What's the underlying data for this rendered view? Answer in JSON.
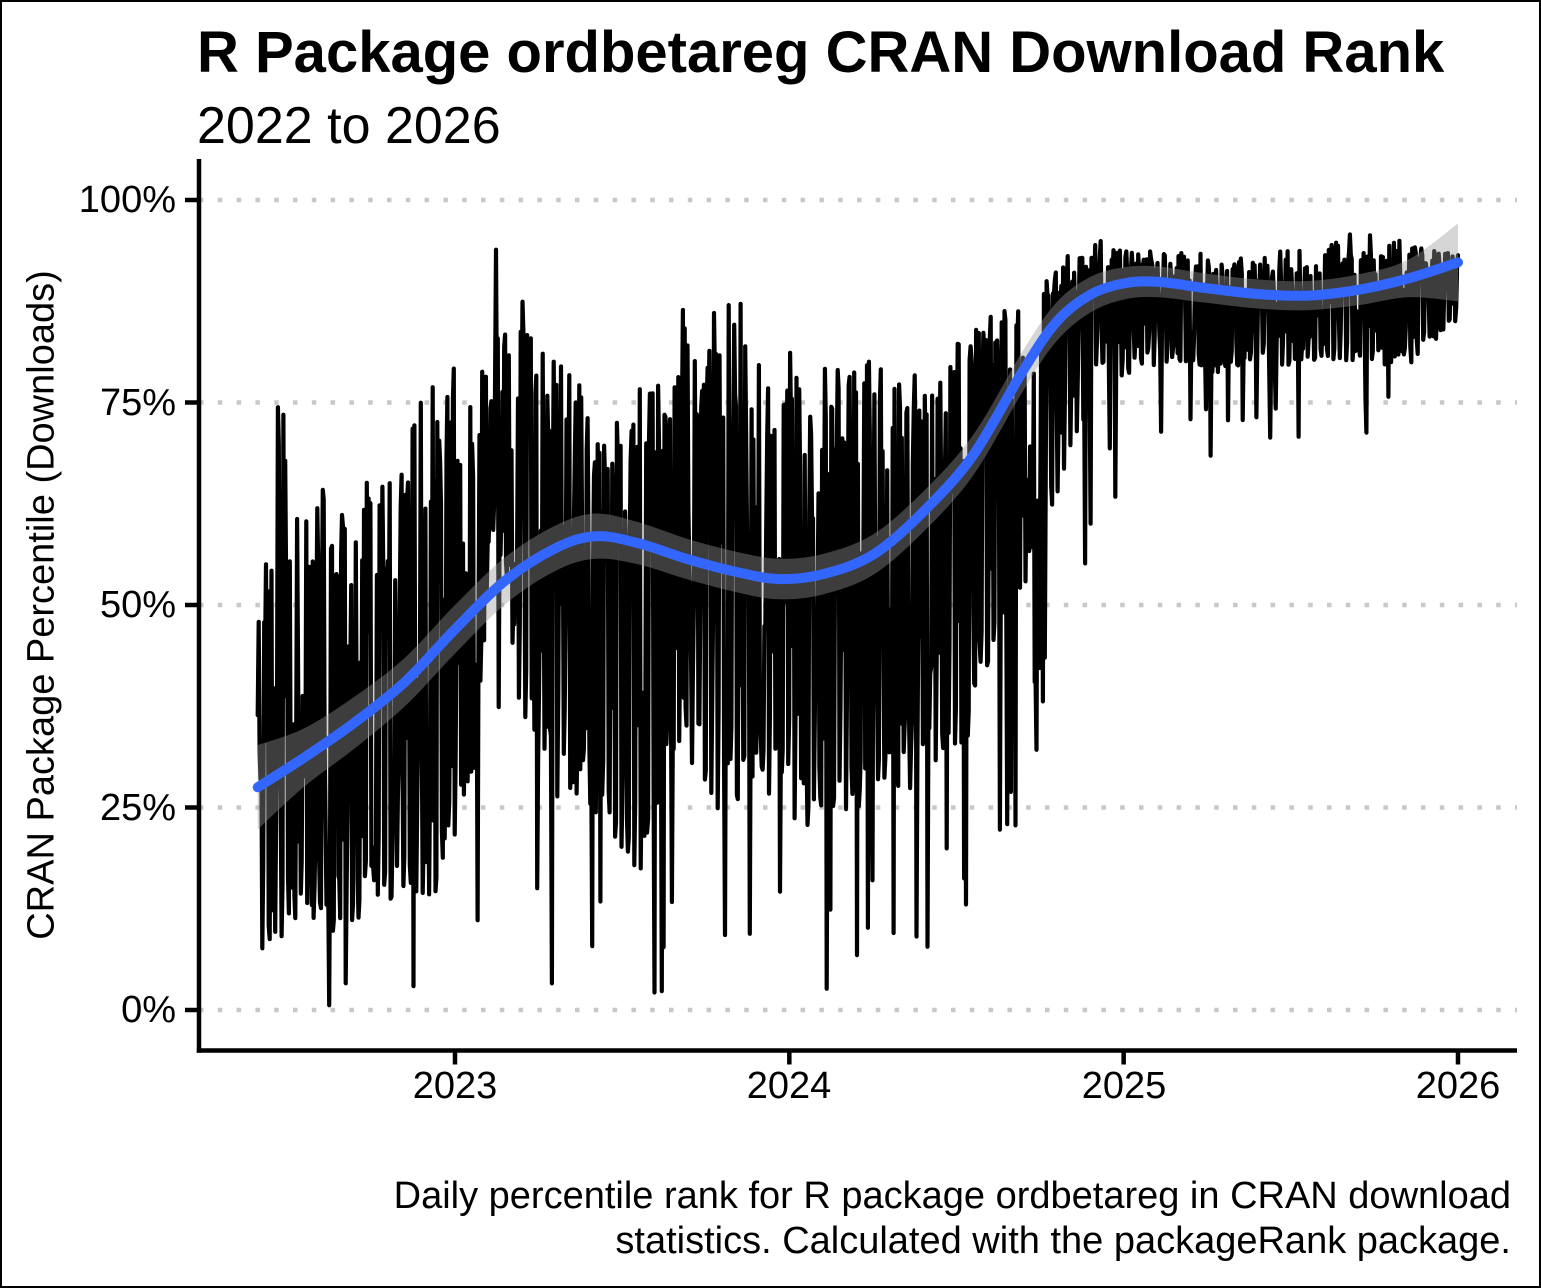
{
  "chart_data": {
    "type": "line",
    "title": "R Package ordbetareg CRAN Download Rank",
    "subtitle": "2022 to 2026",
    "ylabel": "CRAN Package Percentile (Downloads)",
    "caption": [
      "Daily percentile rank for R package ordbetareg in CRAN download",
      "statistics. Calculated with the packageRank package."
    ],
    "x_ticks": [
      {
        "t": 2023,
        "label": "2023"
      },
      {
        "t": 2024,
        "label": "2024"
      },
      {
        "t": 2025,
        "label": "2025"
      },
      {
        "t": 2026,
        "label": "2026"
      }
    ],
    "y_ticks": [
      {
        "v": 100,
        "label": "100%"
      },
      {
        "v": 75,
        "label": "75%"
      },
      {
        "v": 50,
        "label": "50%"
      },
      {
        "v": 25,
        "label": "25%"
      },
      {
        "v": 0,
        "label": "0%"
      }
    ],
    "x_domain": [
      2022.23,
      2026.18
    ],
    "y_domain": [
      0,
      100
    ],
    "grid": {
      "style": "dotted-horizontal",
      "color": "#c8c8c8"
    },
    "legend": "none",
    "background": "#ffffff",
    "series": [
      {
        "name": "daily-percentile-rank",
        "type": "noisy-daily-line",
        "color": "#000000",
        "t_start": 2022.41,
        "t_end": 2026.0,
        "points_per_year": 365,
        "seed": 20260101,
        "generator": "seeded-noise-around-trend-within-envelope",
        "envelope_columns": [
          "t",
          "typical_high",
          "typical_low",
          "extreme_low"
        ],
        "envelope": [
          [
            2022.41,
            50,
            6,
            0
          ],
          [
            2022.47,
            78,
            8,
            0
          ],
          [
            2022.55,
            70,
            10,
            0
          ],
          [
            2022.7,
            68,
            8,
            0
          ],
          [
            2022.82,
            74,
            12,
            0
          ],
          [
            2022.95,
            83,
            12,
            0
          ],
          [
            2023.05,
            78,
            25,
            2
          ],
          [
            2023.12,
            94,
            60,
            30
          ],
          [
            2023.2,
            92,
            35,
            5
          ],
          [
            2023.3,
            82,
            25,
            3
          ],
          [
            2023.45,
            74,
            22,
            0
          ],
          [
            2023.57,
            78,
            15,
            0
          ],
          [
            2023.68,
            88,
            32,
            5
          ],
          [
            2023.8,
            88,
            22,
            2
          ],
          [
            2023.95,
            87,
            25,
            1
          ],
          [
            2024.08,
            81,
            20,
            1
          ],
          [
            2024.2,
            82,
            24,
            6
          ],
          [
            2024.35,
            80,
            26,
            9
          ],
          [
            2024.5,
            83,
            30,
            6
          ],
          [
            2024.62,
            88,
            40,
            18
          ],
          [
            2024.72,
            91,
            52,
            25
          ],
          [
            2024.82,
            93,
            66,
            45
          ],
          [
            2024.92,
            95,
            77,
            60
          ],
          [
            2025.1,
            94,
            79,
            70
          ],
          [
            2025.3,
            93,
            78,
            68
          ],
          [
            2025.5,
            94,
            79,
            68
          ],
          [
            2025.7,
            96,
            80,
            69
          ],
          [
            2025.85,
            95,
            79,
            74
          ],
          [
            2026.0,
            94,
            85,
            80
          ]
        ]
      },
      {
        "name": "smoothed-trend-geom-smooth",
        "type": "smooth-line-with-confidence-ribbon",
        "color": "#3366ff",
        "ribbon_color": "#999999",
        "ribbon_opacity": 0.4,
        "anchor_columns": [
          "t",
          "percentile",
          "ribbon_halfwidth"
        ],
        "anchors": [
          [
            2022.41,
            27.5,
            5.2
          ],
          [
            2022.55,
            31.2,
            3.6
          ],
          [
            2022.7,
            35.5,
            3.2
          ],
          [
            2022.85,
            40.5,
            3.0
          ],
          [
            2023.0,
            47.0,
            3.0
          ],
          [
            2023.15,
            53.0,
            2.9
          ],
          [
            2023.3,
            57.0,
            2.8
          ],
          [
            2023.42,
            58.5,
            2.8
          ],
          [
            2023.55,
            57.6,
            2.6
          ],
          [
            2023.7,
            55.6,
            2.5
          ],
          [
            2023.85,
            54.0,
            2.5
          ],
          [
            2023.97,
            53.2,
            2.5
          ],
          [
            2024.1,
            53.8,
            2.5
          ],
          [
            2024.25,
            56.2,
            2.5
          ],
          [
            2024.4,
            61.5,
            2.5
          ],
          [
            2024.55,
            68.5,
            2.5
          ],
          [
            2024.7,
            79.0,
            2.5
          ],
          [
            2024.8,
            85.0,
            2.4
          ],
          [
            2024.9,
            88.3,
            2.2
          ],
          [
            2025.0,
            89.7,
            2.0
          ],
          [
            2025.1,
            89.9,
            1.9
          ],
          [
            2025.25,
            89.1,
            1.8
          ],
          [
            2025.4,
            88.4,
            1.8
          ],
          [
            2025.55,
            88.2,
            1.8
          ],
          [
            2025.7,
            88.9,
            1.9
          ],
          [
            2025.85,
            90.3,
            2.3
          ],
          [
            2026.0,
            92.3,
            4.8
          ]
        ]
      }
    ]
  }
}
